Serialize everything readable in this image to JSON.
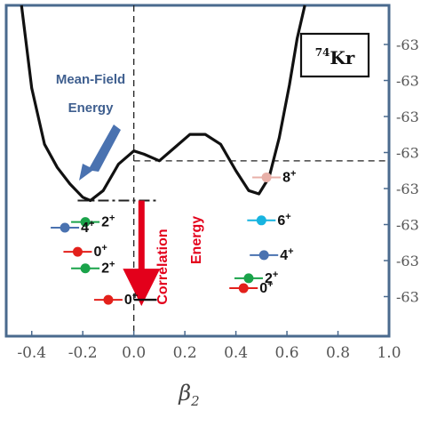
{
  "chart_data": {
    "type": "line",
    "title": "",
    "nucleus_label": {
      "mass": "74",
      "element": "Kr"
    },
    "xlabel": {
      "base": "β",
      "sub": "2"
    },
    "ylabel": "",
    "xlim": [
      -0.5,
      1.0
    ],
    "x_ticks": [
      {
        "value": -0.4,
        "label": "-0.4"
      },
      {
        "value": -0.2,
        "label": "-0.2"
      },
      {
        "value": 0.0,
        "label": "0.0"
      },
      {
        "value": 0.2,
        "label": "0.2"
      },
      {
        "value": 0.4,
        "label": "0.4"
      },
      {
        "value": 0.6,
        "label": "0.6"
      },
      {
        "value": 0.8,
        "label": "0.8"
      },
      {
        "value": 1.0,
        "label": "1.0"
      }
    ],
    "right_tick_labels": [
      "-63",
      "-63",
      "-63",
      "-63",
      "-63",
      "-63",
      "-63",
      "-63"
    ],
    "energy_curve": {
      "x": [
        -0.44,
        -0.4,
        -0.35,
        -0.3,
        -0.25,
        -0.2,
        -0.17,
        -0.12,
        -0.06,
        0.0,
        0.04,
        0.1,
        0.16,
        0.22,
        0.28,
        0.34,
        0.4,
        0.45,
        0.49,
        0.53,
        0.57,
        0.61,
        0.64,
        0.67
      ],
      "y": [
        0.0,
        0.25,
        0.42,
        0.49,
        0.54,
        0.58,
        0.59,
        0.56,
        0.48,
        0.44,
        0.45,
        0.47,
        0.43,
        0.39,
        0.39,
        0.42,
        0.5,
        0.56,
        0.57,
        0.52,
        0.4,
        0.24,
        0.1,
        0.0
      ]
    },
    "reference_lines": {
      "vertical_x": 0.0,
      "horizontal_y": 0.47,
      "mean_field_min_y": 0.59
    },
    "annotations": {
      "mean_field": [
        "Mean-Field",
        "Energy"
      ],
      "correlation": [
        "Correlation",
        "Energy"
      ]
    },
    "correlation_arrow": {
      "x": 0.03,
      "y_from": 0.59,
      "y_to": 0.89
    },
    "ground_state_line": {
      "x_from": 0.0,
      "x_to": 0.09,
      "y": 0.89
    },
    "levels": [
      {
        "spin": "2+",
        "x": -0.19,
        "y": 0.655,
        "color": "#1aa34a",
        "label_side": "right"
      },
      {
        "spin": "4+",
        "x": -0.27,
        "y": 0.672,
        "color": "#4a72b0",
        "label_side": "right"
      },
      {
        "spin": "0+",
        "x": -0.22,
        "y": 0.745,
        "color": "#e3201b",
        "label_side": "right"
      },
      {
        "spin": "2+",
        "x": -0.19,
        "y": 0.795,
        "color": "#1aa34a",
        "label_side": "right"
      },
      {
        "spin": "0+",
        "x": -0.1,
        "y": 0.89,
        "color": "#e3201b",
        "label_side": "right"
      },
      {
        "spin": "8+",
        "x": 0.52,
        "y": 0.52,
        "color": "#e8b0a8",
        "label_side": "right"
      },
      {
        "spin": "6+",
        "x": 0.5,
        "y": 0.65,
        "color": "#17b4e0",
        "label_side": "right"
      },
      {
        "spin": "4+",
        "x": 0.51,
        "y": 0.755,
        "color": "#4a72b0",
        "label_side": "right"
      },
      {
        "spin": "2+",
        "x": 0.45,
        "y": 0.825,
        "color": "#1aa34a",
        "label_side": "right"
      },
      {
        "spin": "0+",
        "x": 0.43,
        "y": 0.855,
        "color": "#e3201b",
        "label_side": "right"
      }
    ],
    "grid": false,
    "frame_color": "#4a6a8e"
  }
}
